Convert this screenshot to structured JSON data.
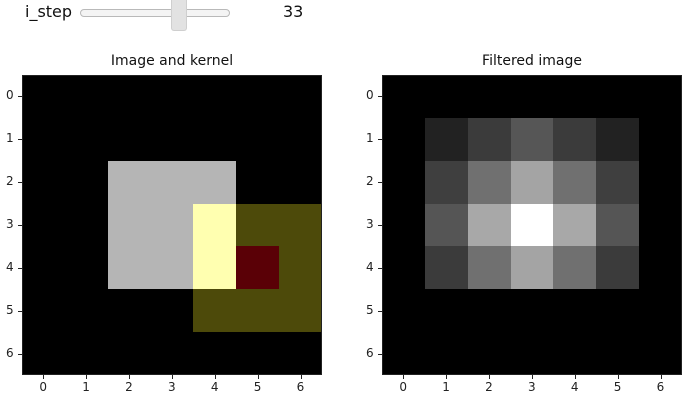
{
  "slider": {
    "label": "i_step",
    "value": "33",
    "fraction": 0.66
  },
  "panels": {
    "left": {
      "title": "Image and kernel",
      "cells": [
        {
          "row": 2,
          "col": 2,
          "color": "#b5b5b5"
        },
        {
          "row": 2,
          "col": 3,
          "color": "#b5b5b5"
        },
        {
          "row": 2,
          "col": 4,
          "color": "#b5b5b5"
        },
        {
          "row": 3,
          "col": 2,
          "color": "#b5b5b5"
        },
        {
          "row": 3,
          "col": 3,
          "color": "#b5b5b5"
        },
        {
          "row": 4,
          "col": 2,
          "color": "#b5b5b5"
        },
        {
          "row": 4,
          "col": 3,
          "color": "#b5b5b5"
        },
        {
          "row": 3,
          "col": 4,
          "color": "#ffffb0"
        },
        {
          "row": 4,
          "col": 4,
          "color": "#ffffb0"
        },
        {
          "row": 3,
          "col": 5,
          "color": "#4d4a0a"
        },
        {
          "row": 3,
          "col": 6,
          "color": "#4d4a0a"
        },
        {
          "row": 4,
          "col": 5,
          "color": "#5a0006"
        },
        {
          "row": 4,
          "col": 6,
          "color": "#4d4a0a"
        },
        {
          "row": 5,
          "col": 4,
          "color": "#4d4a0a"
        },
        {
          "row": 5,
          "col": 5,
          "color": "#4d4a0a"
        },
        {
          "row": 5,
          "col": 6,
          "color": "#4d4a0a"
        }
      ]
    },
    "right": {
      "title": "Filtered image",
      "cells": [
        {
          "row": 1,
          "col": 1,
          "color": "#222222"
        },
        {
          "row": 1,
          "col": 2,
          "color": "#3b3b3b"
        },
        {
          "row": 1,
          "col": 3,
          "color": "#565656"
        },
        {
          "row": 1,
          "col": 4,
          "color": "#3b3b3b"
        },
        {
          "row": 1,
          "col": 5,
          "color": "#222222"
        },
        {
          "row": 2,
          "col": 1,
          "color": "#3f3f3f"
        },
        {
          "row": 2,
          "col": 2,
          "color": "#707070"
        },
        {
          "row": 2,
          "col": 3,
          "color": "#a4a4a4"
        },
        {
          "row": 2,
          "col": 4,
          "color": "#707070"
        },
        {
          "row": 2,
          "col": 5,
          "color": "#3f3f3f"
        },
        {
          "row": 3,
          "col": 1,
          "color": "#555555"
        },
        {
          "row": 3,
          "col": 2,
          "color": "#a8a8a8"
        },
        {
          "row": 3,
          "col": 3,
          "color": "#ffffff"
        },
        {
          "row": 3,
          "col": 4,
          "color": "#a8a8a8"
        },
        {
          "row": 3,
          "col": 5,
          "color": "#555555"
        },
        {
          "row": 4,
          "col": 1,
          "color": "#3b3b3b"
        },
        {
          "row": 4,
          "col": 2,
          "color": "#707070"
        },
        {
          "row": 4,
          "col": 3,
          "color": "#a4a4a4"
        },
        {
          "row": 4,
          "col": 4,
          "color": "#707070"
        },
        {
          "row": 4,
          "col": 5,
          "color": "#3b3b3b"
        }
      ]
    }
  },
  "ticks": [
    "0",
    "1",
    "2",
    "3",
    "4",
    "5",
    "6"
  ]
}
